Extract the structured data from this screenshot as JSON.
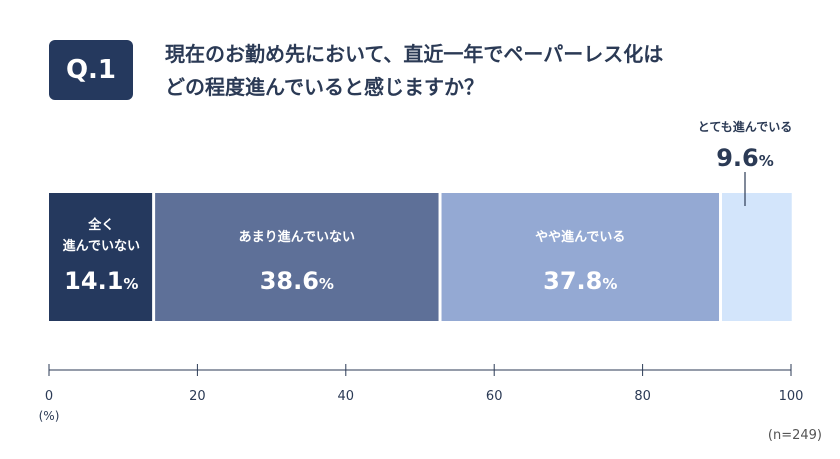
{
  "question": {
    "badge": "Q.1",
    "line1": "現在のお勤め先において、直近一年でペーパーレス化は",
    "line2": "どの程度進んでいると感じますか？"
  },
  "sample_size": "(n=249)",
  "colors": {
    "badge": "#25395e",
    "seg1": "#25395e",
    "seg2": "#5e7098",
    "seg3": "#94a9d3",
    "seg4": "#d3e5fb"
  },
  "chart_data": {
    "type": "bar",
    "orientation": "horizontal-stacked-100",
    "categories": [
      "全く進んでいない",
      "あまり進んでいない",
      "やや進んでいる",
      "とても進んでいる"
    ],
    "values": [
      14.1,
      38.6,
      37.8,
      9.6
    ],
    "value_labels": [
      "14.1",
      "38.6",
      "37.8",
      "9.6"
    ],
    "value_unit": "%",
    "segment_labels": [
      [
        "全く",
        "進んでいない"
      ],
      [
        "あまり進んでいない"
      ],
      [
        "やや進んでいる"
      ],
      [
        "とても進んでいる"
      ]
    ],
    "xlim": [
      0,
      100
    ],
    "xticks": [
      0,
      20,
      40,
      60,
      80,
      100
    ],
    "xtick_labels": [
      "0",
      "20",
      "40",
      "60",
      "80",
      "100"
    ],
    "x_unit_label": "(%)",
    "grid": false
  }
}
